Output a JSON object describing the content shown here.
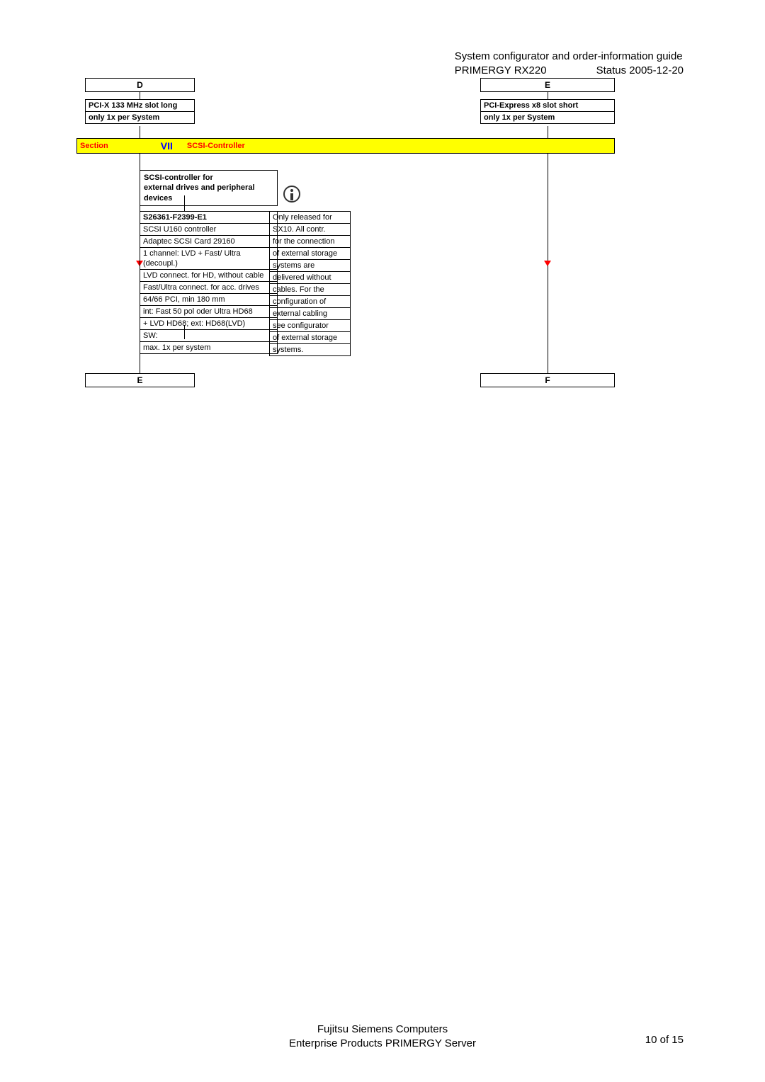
{
  "header": {
    "title": "System configurator and order-information guide",
    "model": "PRIMERGY RX220",
    "status": "Status 2005-12-20"
  },
  "top": {
    "d_label": "D",
    "e_label": "E",
    "left_pci": {
      "row1": "PCI-X 133 MHz slot long",
      "row2": "only 1x per System"
    },
    "right_pci": {
      "row1": "PCI-Express x8 slot short",
      "row2": "only 1x per System"
    }
  },
  "section": {
    "label": "Section",
    "num": "VII",
    "title": "SCSI-Controller"
  },
  "scsi_heading": {
    "line1": "SCSI-controller for",
    "line2": "external drives and peripheral devices"
  },
  "spec": {
    "rows": [
      "S26361-F2399-E1",
      "SCSI U160 controller",
      "Adaptec SCSI Card 29160",
      "1 channel: LVD + Fast/ Ultra (decoupl.)",
      "LVD connect. for HD, without cable",
      "Fast/Ultra connect. for acc. drives",
      "64/66 PCI, min 180 mm",
      "int: Fast 50 pol  oder Ultra HD68",
      "+ LVD HD68; ext: HD68(LVD)",
      "SW:",
      "max. 1x per system"
    ],
    "bold_row_index": 0
  },
  "note": {
    "rows": [
      "Only released for",
      "SX10. All contr.",
      "for the connection",
      "of external storage",
      "systems are",
      "delivered without",
      "cables. For the",
      "configuration of",
      "external cabling",
      "see configurator",
      "of external storage",
      "systems."
    ]
  },
  "bottom": {
    "e_label": "E",
    "f_label": "F"
  },
  "footer": {
    "line1": "Fujitsu Siemens Computers",
    "line2": "Enterprise Products PRIMERGY Server",
    "page": "10 of 15"
  },
  "colors": {
    "section_bg": "#ffff00",
    "section_text": "#ff0000",
    "section_num": "#0000ff",
    "arrow": "#ff0000",
    "border": "#000000",
    "background": "#ffffff"
  }
}
